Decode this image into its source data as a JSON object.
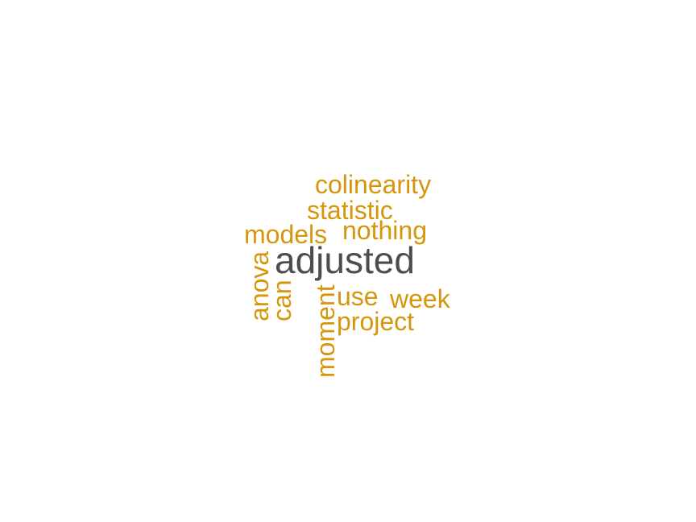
{
  "colors": {
    "primary_word": "#4d4d4f",
    "secondary_word": "#d6960b"
  },
  "words": {
    "adjusted": "adjusted",
    "colinearity": "colinearity",
    "statistic": "statistic",
    "models": "models",
    "nothing": "nothing",
    "anova": "anova",
    "can": "can",
    "moment": "moment",
    "use": "use",
    "week": "week",
    "project": "project"
  }
}
